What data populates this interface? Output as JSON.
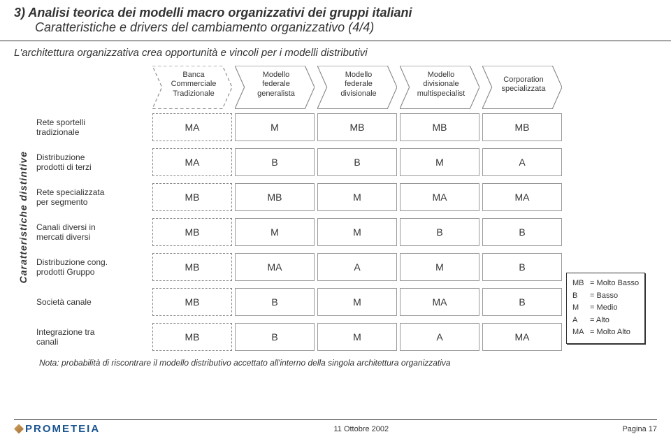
{
  "title": {
    "line1": "3) Analisi teorica dei modelli macro organizzativi dei gruppi italiani",
    "line2": "Caratteristiche e drivers del cambiamento organizzativo (4/4)"
  },
  "subtitle": "L'architettura organizzativa crea opportunità e vincoli per i modelli distributivi",
  "ylabel": "Caratteristiche distintive",
  "columns": [
    "Banca\nCommerciale\nTradizionale",
    "Modello\nfederale\ngeneralista",
    "Modello\nfederale\ndivisionale",
    "Modello\ndivisionale\nmultispecialist",
    "Corporation\nspecializzata"
  ],
  "rows": [
    {
      "label": "Rete sportelli\ntradizionale",
      "values": [
        "MA",
        "M",
        "MB",
        "MB",
        "MB"
      ]
    },
    {
      "label": "Distribuzione\nprodotti di terzi",
      "values": [
        "MA",
        "B",
        "B",
        "M",
        "A"
      ]
    },
    {
      "label": "Rete specializzata\nper segmento",
      "values": [
        "MB",
        "MB",
        "M",
        "MA",
        "MA"
      ]
    },
    {
      "label": "Canali diversi in\nmercati diversi",
      "values": [
        "MB",
        "M",
        "M",
        "B",
        "B"
      ]
    },
    {
      "label": "Distribuzione cong.\nprodotti Gruppo",
      "values": [
        "MB",
        "MA",
        "A",
        "M",
        "B"
      ]
    },
    {
      "label": "Società canale",
      "values": [
        "MB",
        "B",
        "M",
        "MA",
        "B"
      ]
    },
    {
      "label": "Integrazione tra\ncanali",
      "values": [
        "MB",
        "B",
        "M",
        "A",
        "MA"
      ]
    }
  ],
  "legend": [
    {
      "code": "MB",
      "meaning": "Molto Basso"
    },
    {
      "code": "B",
      "meaning": "Basso"
    },
    {
      "code": "M",
      "meaning": "Medio"
    },
    {
      "code": "A",
      "meaning": "Alto"
    },
    {
      "code": "MA",
      "meaning": "Molto Alto"
    }
  ],
  "footnote": "Nota: probabilità di riscontrare il modello distributivo accettato all'interno della singola architettura organizzativa",
  "footer": {
    "logo_text": "PROMETEIA",
    "date": "11 Ottobre 2002",
    "page": "Pagina 17"
  },
  "colors": {
    "chevron_stroke": "#888888",
    "chevron_fill": "#ffffff",
    "first_chevron_stroke": "#888888",
    "text": "#333333"
  }
}
